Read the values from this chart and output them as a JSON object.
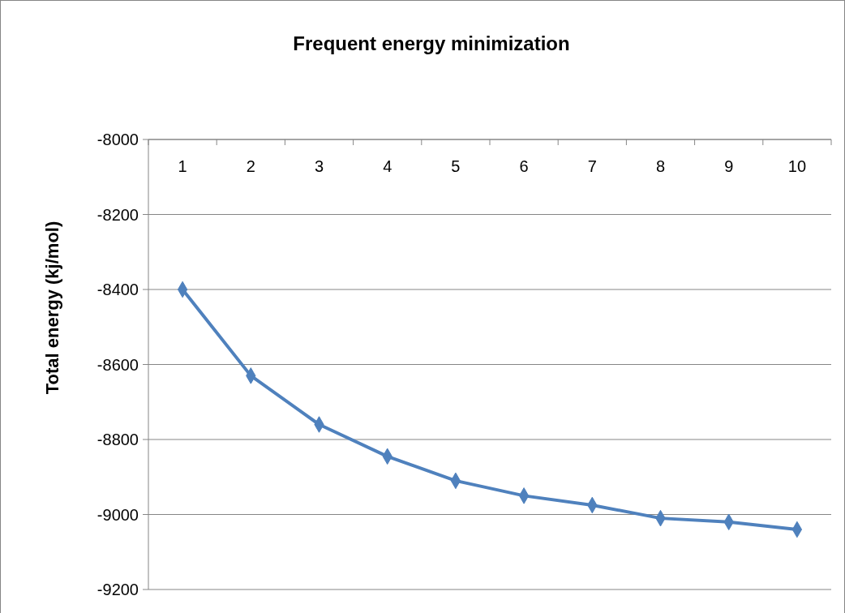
{
  "chart_data": {
    "type": "line",
    "title": "Frequent energy minimization",
    "ylabel": "Total energy (kj/mol)",
    "categories": [
      "1",
      "2",
      "3",
      "4",
      "5",
      "6",
      "7",
      "8",
      "9",
      "10"
    ],
    "series": [
      {
        "color": "#4f81bd",
        "values": [
          -8400,
          -8630,
          -8760,
          -8845,
          -8910,
          -8950,
          -8975,
          -9010,
          -9020,
          -9040
        ]
      }
    ],
    "ylim": [
      -9200,
      -8000
    ],
    "yticks": [
      -9200,
      -9000,
      -8800,
      -8600,
      -8400,
      -8200,
      -8000
    ],
    "grid": "y",
    "marker": "diamond",
    "line_style": "solid"
  }
}
